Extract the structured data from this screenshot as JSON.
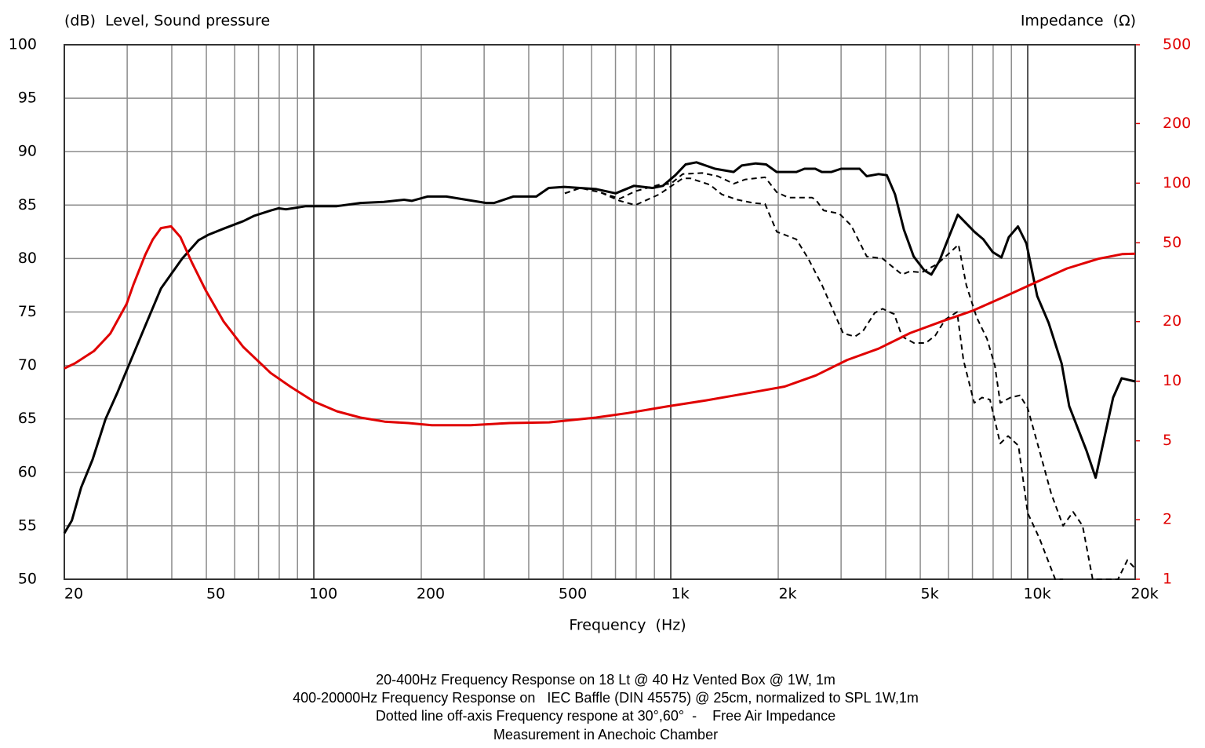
{
  "chart_data": {
    "type": "line",
    "title": "(dB)  Level, Sound pressure",
    "y2_title": "Impedance  (Ω)",
    "x_label": "Frequency  (Hz)",
    "notes": [
      "20-400Hz Frequency Response on 18 Lt @ 40 Hz Vented Box @ 1W, 1m",
      "400-20000Hz Frequency Response on   IEC Baffle (DIN 45575) @ 25cm, normalized to SPL 1W,1m",
      "Dotted line off-axis Frequency respone at 30°,60°  -    Free Air Impedance",
      "Measurement in Anechoic Chamber"
    ],
    "xlog": true,
    "y2log": true,
    "grid": true,
    "xlim": [
      20,
      20000
    ],
    "xticks": [
      20,
      50,
      100,
      200,
      500,
      {
        "value": 1000,
        "label": "1k"
      },
      {
        "value": 2000,
        "label": "2k"
      },
      {
        "value": 5000,
        "label": "5k"
      },
      {
        "value": 10000,
        "label": "10k"
      },
      {
        "value": 20000,
        "label": "20k"
      }
    ],
    "xminorticks": [
      30,
      40,
      60,
      70,
      80,
      90,
      300,
      400,
      600,
      700,
      800,
      900,
      3000,
      4000,
      6000,
      7000,
      8000,
      9000
    ],
    "ylim": [
      50,
      100
    ],
    "yticks": [
      50,
      55,
      60,
      65,
      70,
      75,
      80,
      85,
      90,
      95,
      100
    ],
    "y2lim": [
      1,
      500
    ],
    "y2ticks": [
      1,
      2,
      5,
      10,
      20,
      50,
      100,
      200,
      500
    ],
    "y2color": "#e00000",
    "series": [
      {
        "color": "#000000",
        "linestyle": "solid",
        "x": [
          20,
          21,
          22.3,
          24,
          26.1,
          28.2,
          30.3,
          33.8,
          37.3,
          42.8,
          47.5,
          50.5,
          55.9,
          63.5,
          68.1,
          75.9,
          79.6,
          83.6,
          95,
          116,
          122,
          135,
          157,
          179,
          188,
          208,
          235,
          304,
          320,
          362,
          420,
          455,
          503,
          617,
          701,
          788,
          888,
          950,
          1030,
          1100,
          1180,
          1330,
          1500,
          1580,
          1730,
          1850,
          1980,
          2250,
          2370,
          2540,
          2650,
          2820,
          3000,
          3380,
          3540,
          3820,
          4030,
          4250,
          4500,
          4790,
          5130,
          5370,
          5660,
          6010,
          6370,
          7090,
          7510,
          7980,
          8440,
          8850,
          9390,
          9920,
          10630,
          11440,
          12440,
          13070,
          14620,
          15500,
          17350,
          18330,
          20000
        ],
        "values": [
          54.3,
          55.5,
          58.6,
          61.2,
          65,
          67.5,
          70,
          73.8,
          77.2,
          80,
          81.7,
          82.2,
          82.8,
          83.5,
          84,
          84.5,
          84.7,
          84.6,
          84.9,
          84.9,
          85,
          85.2,
          85.3,
          85.5,
          85.4,
          85.8,
          85.8,
          85.2,
          85.2,
          85.8,
          85.8,
          86.6,
          86.7,
          86.5,
          86.1,
          86.8,
          86.6,
          86.8,
          87.8,
          88.8,
          89,
          88.4,
          88.1,
          88.7,
          88.9,
          88.8,
          88.1,
          88.1,
          88.4,
          88.4,
          88.1,
          88.1,
          88.4,
          88.4,
          87.7,
          87.9,
          87.8,
          86,
          82.7,
          80.2,
          78.9,
          78.5,
          79.8,
          82,
          84.1,
          82.5,
          81.8,
          80.6,
          80.1,
          82,
          83,
          81.4,
          76.5,
          74,
          70.2,
          66.2,
          62,
          59.5,
          67,
          68.8,
          68.5
        ]
      },
      {
        "color": "#000000",
        "linestyle": "dashed",
        "x": [
          505,
          558,
          634,
          720,
          796,
          927,
          1000,
          1080,
          1224,
          1355,
          1500,
          1618,
          1837,
          1982,
          2138,
          2488,
          2548,
          2680,
          2966,
          3200,
          3540,
          3920,
          4226,
          4446,
          4676,
          5050,
          5586,
          6026,
          6400,
          6730,
          7192,
          7690,
          8090,
          8376,
          8950,
          9510,
          10000,
          10790,
          11640,
          12560,
          13400,
          14250,
          15200,
          17900,
          19020,
          20000
        ],
        "values": [
          86.1,
          86.6,
          86.2,
          85.6,
          86.3,
          86.9,
          87,
          87.9,
          88,
          87.7,
          87,
          87.4,
          87.6,
          86.2,
          85.7,
          85.7,
          85.5,
          84.5,
          84.2,
          83.1,
          80.2,
          80,
          79.1,
          78.5,
          78.8,
          78.7,
          79.5,
          80.5,
          81.3,
          77.5,
          74.5,
          72.5,
          70,
          66.5,
          67,
          67.2,
          66,
          62,
          58,
          55,
          56.3,
          55,
          50,
          50,
          51.8,
          51
        ]
      },
      {
        "color": "#000000",
        "linestyle": "dashed",
        "x": [
          505,
          558,
          634,
          720,
          796,
          927,
          1080,
          1135,
          1288,
          1390,
          1538,
          1702,
          1837,
          1982,
          2248,
          2426,
          2654,
          2820,
          3040,
          3280,
          3452,
          3724,
          3920,
          4226,
          4446,
          4800,
          5180,
          5508,
          5876,
          6340,
          6606,
          7080,
          7446,
          7840,
          8376,
          8810,
          9420,
          10000,
          10790,
          11940,
          12560
        ],
        "values": [
          86.1,
          86.6,
          86.2,
          85.4,
          85,
          86,
          87.5,
          87.5,
          86.9,
          86,
          85.5,
          85.2,
          85.1,
          82.5,
          81.8,
          80,
          77.5,
          75.5,
          73,
          72.7,
          73.2,
          74.9,
          75.3,
          74.8,
          72.7,
          72.1,
          72.1,
          72.8,
          74.3,
          75,
          70.5,
          66.5,
          67,
          66.8,
          62.7,
          63.4,
          62.5,
          56.2,
          53.8,
          50,
          50
        ]
      },
      {
        "color": "#e00000",
        "linestyle": "solid",
        "axis": "y2",
        "x": [
          20,
          21.4,
          24.2,
          26.9,
          29.9,
          31.2,
          33.7,
          35.4,
          37.3,
          39.8,
          42.3,
          45.6,
          49.8,
          55.9,
          63.4,
          75.7,
          85.9,
          100,
          116,
          135,
          158,
          184,
          214,
          275,
          354,
          456,
          618,
          757,
          975,
          1256,
          1700,
          2085,
          2550,
          3120,
          3820,
          4680,
          5730,
          7020,
          8590,
          10520,
          12890,
          15780,
          18370,
          20000
        ],
        "values": [
          11.6,
          12.3,
          14.2,
          17.4,
          24.6,
          30.6,
          43.4,
          52,
          59.3,
          60.5,
          53.4,
          39.5,
          28.7,
          20,
          14.9,
          11,
          9.4,
          7.9,
          7.05,
          6.55,
          6.25,
          6.15,
          6,
          6,
          6.15,
          6.2,
          6.55,
          6.9,
          7.45,
          8,
          8.8,
          9.4,
          10.7,
          12.8,
          14.6,
          17.5,
          20,
          22.7,
          26.7,
          31.5,
          37.1,
          41.5,
          43.8,
          44
        ]
      }
    ]
  }
}
